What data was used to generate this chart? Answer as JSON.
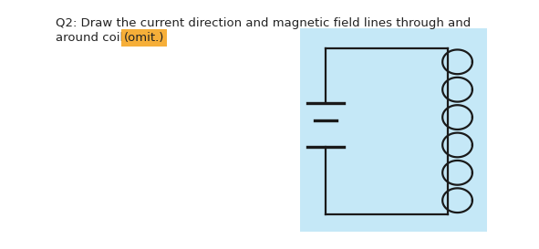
{
  "title_line1": "Q2: Draw the current direction and magnetic field lines through and",
  "title_line2": "around coil ",
  "highlight_text": "(omit.)",
  "highlight_color": "#F5A623",
  "text_color": "#222222",
  "title_fontsize": 9.5,
  "bg_color": "#ffffff",
  "box_bg": "#c5e8f7",
  "line_color": "#1a1a1a",
  "line_width": 1.6,
  "coil_n_loops": 6
}
